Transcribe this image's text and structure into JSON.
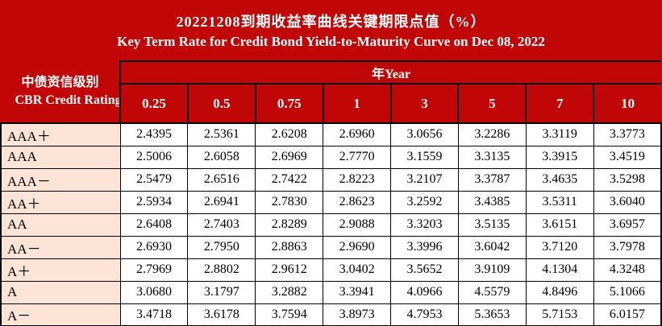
{
  "title": {
    "zh": "20221208到期收益率曲线关键期限点值（%）",
    "en": "Key Term Rate for Credit Bond Yield-to-Maturity Curve on Dec 08, 2022"
  },
  "table": {
    "rating_header_zh": "中债资信级别",
    "rating_header_en": "CBR Credit Rating",
    "year_header": "年Year",
    "terms": [
      "0.25",
      "0.5",
      "0.75",
      "1",
      "3",
      "5",
      "7",
      "10"
    ]
  },
  "colors": {
    "header_red": "#C00606",
    "rating_peach": "#FCE4D6",
    "cell_white": "#FFFFFF",
    "border_black": "#000000",
    "header_text": "#FFFFFF"
  },
  "chart_data": {
    "type": "table",
    "title": "20221208到期收益率曲线关键期限点值（%） Key Term Rate for Credit Bond Yield-to-Maturity Curve on Dec 08, 2022",
    "columns": [
      "CBR Credit Rating",
      "0.25",
      "0.5",
      "0.75",
      "1",
      "3",
      "5",
      "7",
      "10"
    ],
    "unit": "%",
    "rows": [
      [
        "AAA＋",
        2.4395,
        2.5361,
        2.6208,
        2.696,
        3.0656,
        3.2286,
        3.3119,
        3.3773
      ],
      [
        "AAA",
        2.5006,
        2.6058,
        2.6969,
        2.777,
        3.1559,
        3.3135,
        3.3915,
        3.4519
      ],
      [
        "AAA－",
        2.5479,
        2.6516,
        2.7422,
        2.8223,
        3.2107,
        3.3787,
        3.4635,
        3.5298
      ],
      [
        "AA＋",
        2.5934,
        2.6941,
        2.783,
        2.8623,
        3.2592,
        3.4385,
        3.5311,
        3.604
      ],
      [
        "AA",
        2.6408,
        2.7403,
        2.8289,
        2.9088,
        3.3203,
        3.5135,
        3.6151,
        3.6957
      ],
      [
        "AA－",
        2.693,
        2.795,
        2.8863,
        2.969,
        3.3996,
        3.6042,
        3.712,
        3.7978
      ],
      [
        "A＋",
        2.7969,
        2.8802,
        2.9612,
        3.0402,
        3.5652,
        3.9109,
        4.1304,
        4.3248
      ],
      [
        "A",
        3.068,
        3.1797,
        3.2882,
        3.3941,
        4.0966,
        4.5579,
        4.8496,
        5.1066
      ],
      [
        "A－",
        3.4718,
        3.6178,
        3.7594,
        3.8973,
        4.7953,
        5.3653,
        5.7153,
        6.0157
      ]
    ]
  }
}
